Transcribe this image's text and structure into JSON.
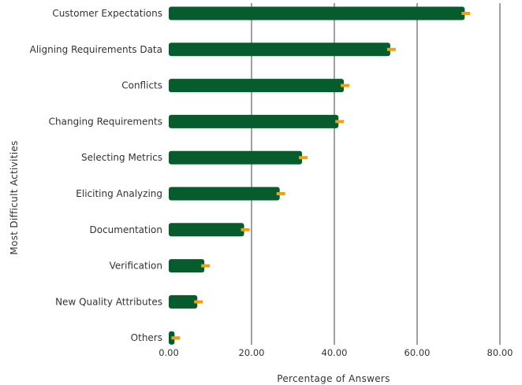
{
  "chart_data": {
    "type": "bar",
    "orientation": "horizontal",
    "ylabel": "Most  Difficult  Activities",
    "xlabel": "Percentage  of  Answers",
    "xlim": [
      0,
      80
    ],
    "xticks": [
      "0.00",
      "20.00",
      "40.00",
      "60.00",
      "80.00"
    ],
    "grid": true,
    "categories": [
      "Customer  Expectations",
      "Aligning Requirements Data",
      "Conflicts",
      "Changing Requirements",
      "Selecting Metrics",
      "Eliciting Analyzing",
      "Documentation",
      "Verification",
      "New Quality Attributes",
      "Others"
    ],
    "values": [
      71.5,
      53.5,
      42.3,
      41.0,
      32.2,
      26.8,
      18.2,
      8.6,
      6.9,
      1.4
    ],
    "error_bars": true,
    "colors": {
      "bar": "#065c2c",
      "error": "#f5a00a",
      "grid": "#404040",
      "text": "#333333"
    }
  }
}
